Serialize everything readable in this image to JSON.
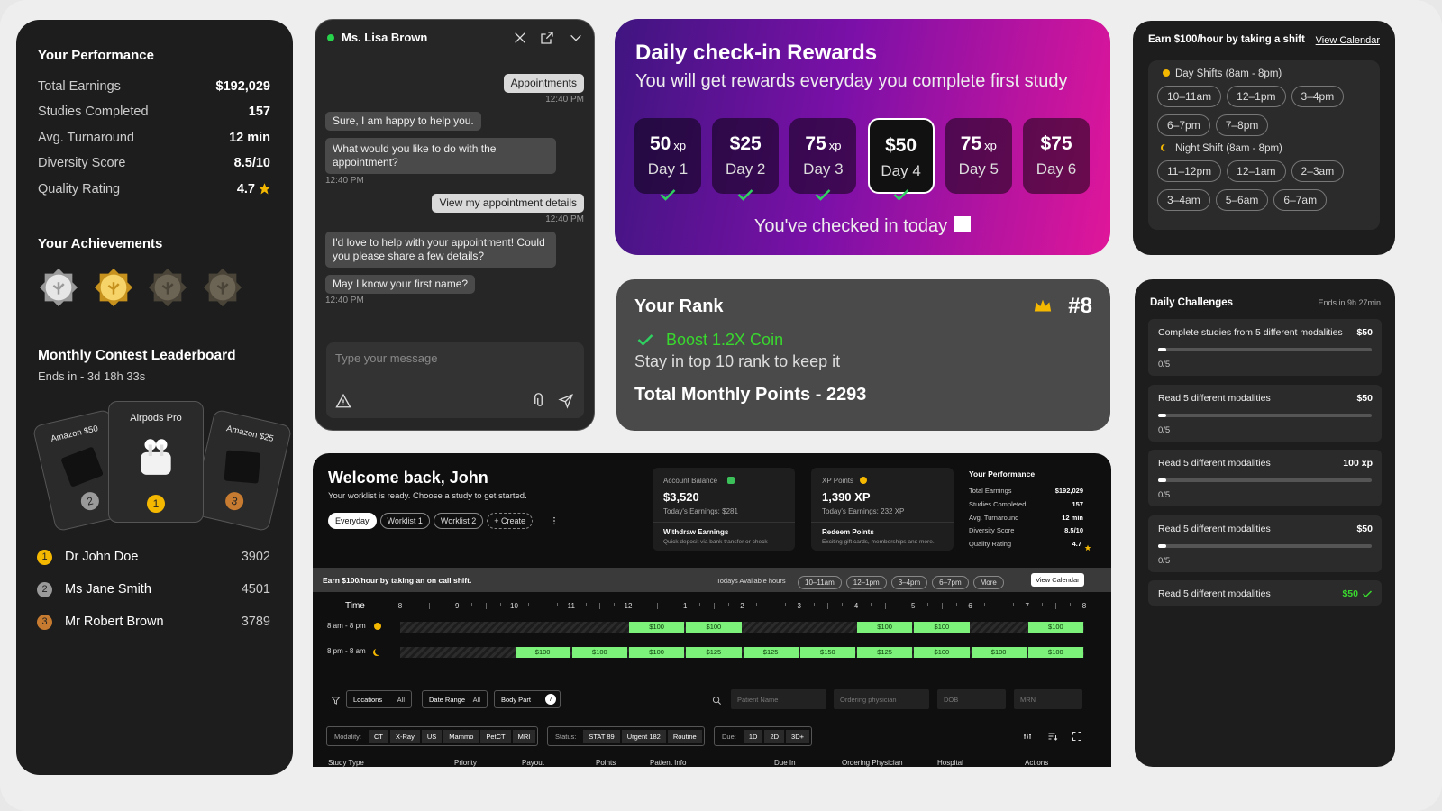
{
  "performance": {
    "title": "Your Performance",
    "stats": [
      {
        "label": "Total Earnings",
        "value": "$192,029"
      },
      {
        "label": "Studies Completed",
        "value": "157"
      },
      {
        "label": "Avg. Turnaround",
        "value": "12 min"
      },
      {
        "label": "Diversity Score",
        "value": "8.5/10"
      },
      {
        "label": "Quality Rating",
        "value": "4.7"
      }
    ]
  },
  "achievements": {
    "title": "Your Achievements"
  },
  "leaderboard": {
    "title": "Monthly Contest Leaderboard",
    "ends": "Ends in - 3d 18h 33s",
    "prizes": [
      {
        "label": "Amazon $50",
        "rank": "2"
      },
      {
        "label": "Airpods Pro",
        "rank": "1"
      },
      {
        "label": "Amazon $25",
        "rank": "3"
      }
    ],
    "rows": [
      {
        "rank": "1",
        "name": "Dr John Doe",
        "points": "3902"
      },
      {
        "rank": "2",
        "name": "Ms Jane Smith",
        "points": "4501"
      },
      {
        "rank": "3",
        "name": "Mr Robert Brown",
        "points": "3789"
      }
    ]
  },
  "chat": {
    "name": "Ms. Lisa Brown",
    "messages": [
      {
        "from": "user",
        "text": "Appointments",
        "time": "12:40 PM"
      },
      {
        "from": "bot",
        "text": "Sure, I am happy to help you."
      },
      {
        "from": "bot",
        "text": "What would you like to do with the appointment?",
        "time": "12:40 PM"
      },
      {
        "from": "user",
        "text": "View my appointment details",
        "time": "12:40 PM"
      },
      {
        "from": "bot",
        "text": "I'd love to help with your appointment! Could you please share a few details?"
      },
      {
        "from": "bot",
        "text": "May I know your first name?",
        "time": "12:40 PM"
      }
    ],
    "placeholder": "Type your message"
  },
  "rewards": {
    "title": "Daily check-in Rewards",
    "subtitle": "You will get rewards everyday you complete first study",
    "days": [
      {
        "amount": "50",
        "unit": "xp",
        "day": "Day 1",
        "checked": true
      },
      {
        "amount": "$25",
        "day": "Day 2",
        "checked": true
      },
      {
        "amount": "75",
        "unit": "xp",
        "day": "Day 3",
        "checked": true
      },
      {
        "amount": "$50",
        "day": "Day 4",
        "checked": true,
        "selected": true
      },
      {
        "amount": "75",
        "unit": "xp",
        "day": "Day 5"
      },
      {
        "amount": "$75",
        "day": "Day 6"
      }
    ],
    "status": "You've checked in today"
  },
  "rank": {
    "title": "Your Rank",
    "rank": "#8",
    "boost": "Boost 1.2X Coin",
    "note": "Stay in top 10 rank to keep it",
    "points": "Total Monthly Points - 2293"
  },
  "shifts": {
    "title": "Earn $100/hour by taking a shift",
    "link": "View Calendar",
    "groups": [
      {
        "label": "Day Shifts (8am - 8pm)",
        "slots": [
          "10–11am",
          "12–1pm",
          "3–4pm",
          "6–7pm",
          "7–8pm"
        ]
      },
      {
        "label": "Night Shift (8am - 8pm)",
        "slots": [
          "11–12pm",
          "12–1am",
          "2–3am",
          "3–4am",
          "5–6am",
          "6–7am"
        ]
      }
    ]
  },
  "challenges": {
    "title": "Daily Challenges",
    "ends": "Ends in 9h 27min",
    "items": [
      {
        "text": "Complete studies from 5 different modalities",
        "reward": "$50",
        "progress": "0/5"
      },
      {
        "text": "Read 5 different modalities",
        "reward": "$50",
        "progress": "0/5"
      },
      {
        "text": "Read 5 different modalities",
        "reward": "100 xp",
        "progress": "0/5"
      },
      {
        "text": "Read 5 different modalities",
        "reward": "$50",
        "progress": "0/5"
      },
      {
        "text": "Read 5 different modalities",
        "reward": "$50",
        "done": true
      }
    ]
  },
  "dashboard": {
    "welcome": "Welcome back, John",
    "subtitle": "Your worklist is ready. Choose a study to get started.",
    "tabs": [
      "Everyday",
      "Worklist 1",
      "Worklist 2",
      "+ Create"
    ],
    "cards": [
      {
        "label": "Account Balance",
        "value": "$3,520",
        "today": "Today's Earnings: $281",
        "action": "Withdraw Earnings",
        "note": "Quick deposit via bank transfer or check"
      },
      {
        "label": "XP Points",
        "value": "1,390 XP",
        "today": "Today's Earnings: 232 XP",
        "action": "Redeem Points",
        "note": "Exciting gift cards, memberships and more."
      }
    ],
    "performance": {
      "title": "Your Performance",
      "stats": [
        {
          "label": "Total Earnings",
          "value": "$192,029"
        },
        {
          "label": "Studies Completed",
          "value": "157"
        },
        {
          "label": "Avg. Turnaround",
          "value": "12 min"
        },
        {
          "label": "Diversity Score",
          "value": "8.5/10"
        },
        {
          "label": "Quality Rating",
          "value": "4.7"
        }
      ]
    },
    "oncall": {
      "title": "Earn $100/hour by taking an on call shift.",
      "hours_label": "Todays Available hours",
      "slots": [
        "10–11am",
        "12–1pm",
        "3–4pm",
        "6–7pm",
        "More"
      ],
      "link": "View Calendar",
      "time_label": "Time",
      "hours": [
        "8",
        "9",
        "10",
        "11",
        "12",
        "1",
        "2",
        "3",
        "4",
        "5",
        "6",
        "7",
        "8"
      ],
      "rows": [
        {
          "label": "8 am - 8 pm",
          "cells": [
            null,
            null,
            null,
            null,
            "$100",
            "$100",
            null,
            null,
            "$100",
            "$100",
            null,
            "$100"
          ]
        },
        {
          "label": "8 pm - 8 am",
          "cells": [
            null,
            null,
            "$100",
            "$100",
            "$100",
            "$125",
            "$125",
            "$150",
            "$125",
            "$100",
            "$100",
            "$100"
          ]
        }
      ]
    },
    "filters": {
      "items": [
        {
          "label": "Locations",
          "value": "All"
        },
        {
          "label": "Date Range",
          "value": "All"
        },
        {
          "label": "Body Part",
          "value": "7"
        }
      ],
      "search": [
        "Patient Name",
        "Ordering physician",
        "DOB",
        "MRN"
      ],
      "groups": [
        {
          "label": "Modality:",
          "options": [
            "CT",
            "X-Ray",
            "US",
            "Mammo",
            "PetCT",
            "MRI"
          ]
        },
        {
          "label": "Status:",
          "options": [
            "STAT 89",
            "Urgent 182",
            "Routine"
          ]
        },
        {
          "label": "Due:",
          "options": [
            "1D",
            "2D",
            "3D+"
          ]
        }
      ]
    },
    "columns": [
      "Study Type",
      "Priority",
      "Payout",
      "Points",
      "Patient Info",
      "Due In",
      "Ordering Physician",
      "Hospital",
      "Actions"
    ]
  }
}
